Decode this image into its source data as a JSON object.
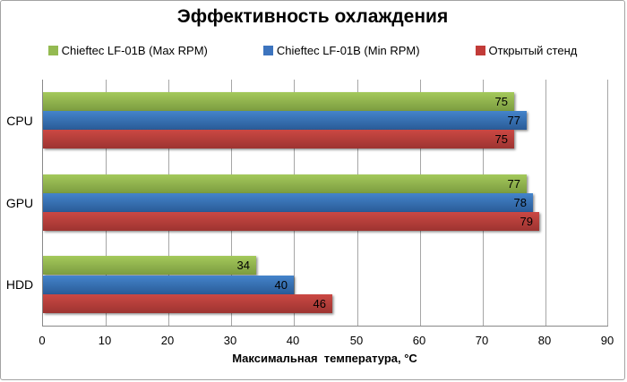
{
  "chart_data": {
    "type": "bar",
    "orientation": "horizontal",
    "title": "Эффективность охлаждения",
    "categories": [
      "CPU",
      "GPU",
      "HDD"
    ],
    "series": [
      {
        "name": "Chieftec LF-01B (Max RPM)",
        "color": "#94ba51",
        "gradient": [
          "#a4c95b",
          "#7c9c40"
        ],
        "values": [
          75,
          77,
          34
        ]
      },
      {
        "name": "Chieftec LF-01B (Min RPM)",
        "color": "#3d74be",
        "gradient": [
          "#4484cb",
          "#2a5b97"
        ],
        "values": [
          77,
          78,
          40
        ]
      },
      {
        "name": "Открытый стенд",
        "color": "#c23b38",
        "gradient": [
          "#cb4843",
          "#9d3431"
        ],
        "values": [
          75,
          79,
          46
        ]
      }
    ],
    "xlabel": "Максимальная  температура, °C",
    "xlim": [
      0,
      90
    ],
    "xticks": [
      0,
      10,
      20,
      30,
      40,
      50,
      60,
      70,
      80,
      90
    ],
    "grid": true,
    "legend_position": "top",
    "data_labels": true
  }
}
